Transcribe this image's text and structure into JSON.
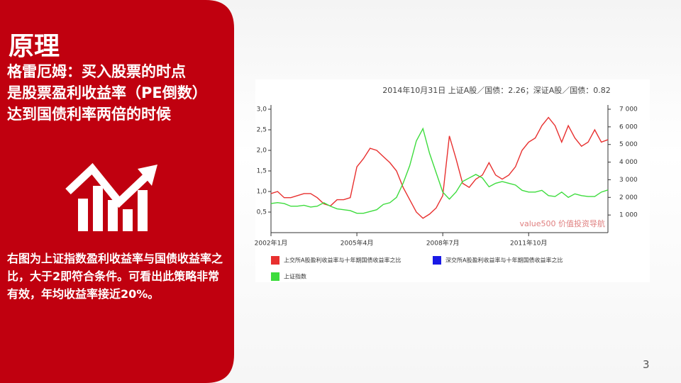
{
  "slide": {
    "title": "原理",
    "subtitle_lines": [
      "格雷厄姆：买入股票的时点",
      "是股票盈利收益率（PE倒数）",
      "达到国债利率两倍的时候"
    ],
    "description": "右图为上证指数盈利收益率与国债收益率之比，大于2即符合条件。可看出此策略非常有效，年均收益率接近20%。",
    "page_number": "3"
  },
  "chart_data": {
    "type": "line",
    "title": "2014年10月31日 上证A股／国债：2.26；深证A股／国债：0.82",
    "watermark": "value500 价值投资导航",
    "categories": [
      "2002年1月",
      null,
      null,
      null,
      null,
      null,
      null,
      null,
      null,
      null,
      null,
      null,
      null,
      "2005年4月",
      null,
      null,
      null,
      null,
      null,
      null,
      null,
      null,
      null,
      null,
      null,
      null,
      "2008年7月",
      null,
      null,
      null,
      null,
      null,
      null,
      null,
      null,
      null,
      null,
      null,
      null,
      "2011年10月",
      null,
      null,
      null,
      null,
      null,
      null,
      null,
      null,
      null,
      null,
      null,
      null
    ],
    "ylim": [
      0,
      3
    ],
    "yticks": [
      {
        "value": 0.5,
        "label": "0,5"
      },
      {
        "value": 1,
        "label": "1,0"
      },
      {
        "value": 1.5,
        "label": "1,5"
      },
      {
        "value": 2,
        "label": "2,0"
      },
      {
        "value": 2.5,
        "label": "2,5"
      },
      {
        "value": 3,
        "label": "3,0"
      }
    ],
    "y2lim": [
      0,
      7000
    ],
    "y2ticks": [
      {
        "value": 1000,
        "label": "1 000"
      },
      {
        "value": 2000,
        "label": "2 000"
      },
      {
        "value": 3000,
        "label": "3 000"
      },
      {
        "value": 4000,
        "label": "4 000"
      },
      {
        "value": 5000,
        "label": "5 000"
      },
      {
        "value": 6000,
        "label": "6 000"
      },
      {
        "value": 7000,
        "label": "7 000"
      }
    ],
    "series": [
      {
        "name": "上交所A股盈利收益率与十年期国债收益率之比",
        "color": "#e8302f",
        "values": [
          0.95,
          1.0,
          0.85,
          0.85,
          0.9,
          0.95,
          0.95,
          0.85,
          0.7,
          0.65,
          0.8,
          0.8,
          0.85,
          1.6,
          1.8,
          2.05,
          2.0,
          1.85,
          1.7,
          1.5,
          1.1,
          0.8,
          0.5,
          0.35,
          0.45,
          0.6,
          0.9,
          2.35,
          1.8,
          1.2,
          1.1,
          1.3,
          1.4,
          1.7,
          1.4,
          1.3,
          1.4,
          1.6,
          2.0,
          2.2,
          2.3,
          2.6,
          2.8,
          2.6,
          2.2,
          2.6,
          2.3,
          2.1,
          2.2,
          2.5,
          2.2,
          2.26
        ]
      },
      {
        "name": "深交所A股盈利收益率与十年期国债收益率之比",
        "color": "#1a1ae6",
        "values": [
          null,
          null,
          null,
          null,
          null,
          null,
          null,
          null,
          null,
          null,
          null,
          null,
          null,
          null,
          null,
          null,
          null,
          null,
          null,
          null,
          null,
          null,
          null,
          null,
          null,
          null,
          null,
          null,
          null,
          null,
          null,
          null,
          null,
          null,
          null,
          null,
          null,
          null,
          null,
          null,
          null,
          null,
          null,
          null,
          null,
          null,
          null,
          null,
          null,
          null,
          null,
          null
        ]
      },
      {
        "name": "上证指数",
        "color": "#3ddc3d",
        "axis": "y2",
        "values": [
          1650,
          1700,
          1650,
          1500,
          1500,
          1550,
          1450,
          1500,
          1700,
          1500,
          1350,
          1300,
          1250,
          1100,
          1100,
          1200,
          1300,
          1600,
          1700,
          2000,
          2800,
          3800,
          5200,
          5900,
          4500,
          3400,
          2300,
          1900,
          2300,
          2900,
          3100,
          3300,
          3100,
          2600,
          2800,
          2900,
          2800,
          2700,
          2400,
          2300,
          2300,
          2400,
          2100,
          2050,
          2300,
          2000,
          2200,
          2100,
          2050,
          2050,
          2300,
          2420
        ]
      }
    ]
  }
}
